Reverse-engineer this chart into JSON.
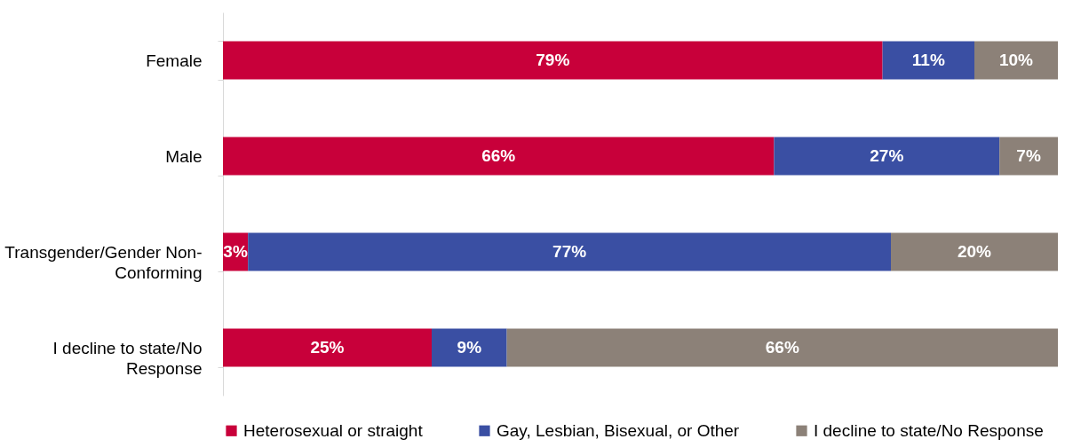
{
  "chart_data": {
    "type": "bar",
    "orientation": "horizontal",
    "stacked": true,
    "categories": [
      "Female",
      "Male",
      "Transgender/Gender Non-Conforming",
      "I decline to state/No Response"
    ],
    "xlim": [
      0,
      100
    ],
    "tick_labels": "y",
    "legend": "bottom",
    "series": [
      {
        "name": "Heterosexual or straight",
        "color": "#c8003a",
        "values": [
          79,
          66,
          3,
          25
        ],
        "value_labels": [
          "79%",
          "66%",
          "3%",
          "25%"
        ]
      },
      {
        "name": "Gay, Lesbian, Bisexual, or Other",
        "color": "#3a4fa3",
        "values": [
          11,
          27,
          77,
          9
        ],
        "value_labels": [
          "11%",
          "27%",
          "77%",
          "9%"
        ]
      },
      {
        "name": "I decline to state/No Response",
        "color": "#8c8178",
        "values": [
          10,
          7,
          20,
          66
        ],
        "value_labels": [
          "10%",
          "7%",
          "20%",
          "66%"
        ]
      }
    ]
  }
}
